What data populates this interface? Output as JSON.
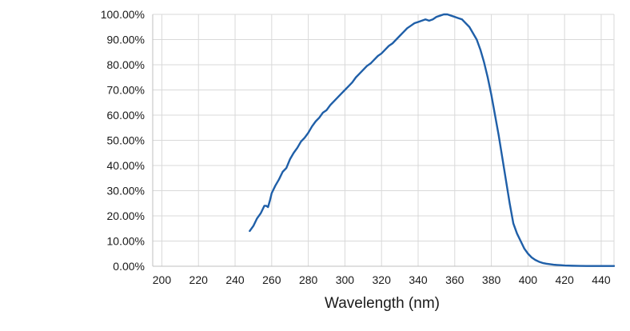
{
  "chart_data": {
    "type": "line",
    "title": "",
    "xlabel": "Wavelength (nm)",
    "ylabel": "",
    "xlim": [
      195,
      447
    ],
    "ylim": [
      0,
      100
    ],
    "x_ticks": [
      200,
      220,
      240,
      260,
      280,
      300,
      320,
      340,
      360,
      380,
      400,
      420,
      440
    ],
    "x_tick_labels": [
      "200",
      "220",
      "240",
      "260",
      "280",
      "300",
      "320",
      "340",
      "360",
      "380",
      "400",
      "420",
      "440"
    ],
    "y_ticks": [
      0,
      10,
      20,
      30,
      40,
      50,
      60,
      70,
      80,
      90,
      100
    ],
    "y_tick_labels": [
      "0.00%",
      "10.00%",
      "20.00%",
      "30.00%",
      "40.00%",
      "50.00%",
      "60.00%",
      "70.00%",
      "80.00%",
      "90.00%",
      "100.00%"
    ],
    "grid": true,
    "legend": "none",
    "line_color": "#1f5fa8",
    "series": [
      {
        "x": [
          248,
          250,
          252,
          254,
          256,
          257,
          258,
          259,
          260,
          262,
          264,
          266,
          268,
          270,
          272,
          274,
          276,
          278,
          280,
          282,
          284,
          286,
          288,
          290,
          292,
          294,
          296,
          298,
          300,
          302,
          304,
          306,
          308,
          310,
          312,
          314,
          316,
          318,
          320,
          322,
          324,
          326,
          328,
          330,
          332,
          334,
          336,
          338,
          340,
          342,
          344,
          346,
          348,
          350,
          352,
          354,
          356,
          358,
          360,
          362,
          364,
          366,
          368,
          370,
          372,
          374,
          376,
          378,
          380,
          382,
          384,
          386,
          388,
          390,
          392,
          394,
          396,
          398,
          400,
          402,
          404,
          406,
          408,
          410,
          412,
          414,
          416,
          418,
          420,
          424,
          428,
          432,
          436,
          440,
          447
        ],
        "y": [
          14,
          16,
          19,
          21,
          24,
          24,
          23.5,
          26,
          29,
          32,
          34.5,
          37.5,
          39,
          42.5,
          45,
          47,
          49.5,
          51,
          53,
          55.5,
          57.5,
          59,
          61,
          62,
          64,
          65.5,
          67,
          68.5,
          70,
          71.5,
          73,
          75,
          76.5,
          78,
          79.5,
          80.5,
          82,
          83.5,
          84.5,
          86,
          87.5,
          88.5,
          90,
          91.5,
          93,
          94.5,
          95.5,
          96.5,
          97,
          97.5,
          98,
          97.5,
          98,
          99,
          99.5,
          100,
          100,
          99.5,
          99,
          98.5,
          98,
          96.5,
          95,
          92.5,
          90,
          86,
          81,
          75,
          68,
          60,
          52,
          43,
          34,
          25,
          17,
          13,
          10,
          7,
          5,
          3.5,
          2.5,
          1.8,
          1.3,
          1,
          0.8,
          0.6,
          0.5,
          0.4,
          0.3,
          0.2,
          0.15,
          0.1,
          0.1,
          0.1,
          0.1
        ]
      }
    ]
  }
}
